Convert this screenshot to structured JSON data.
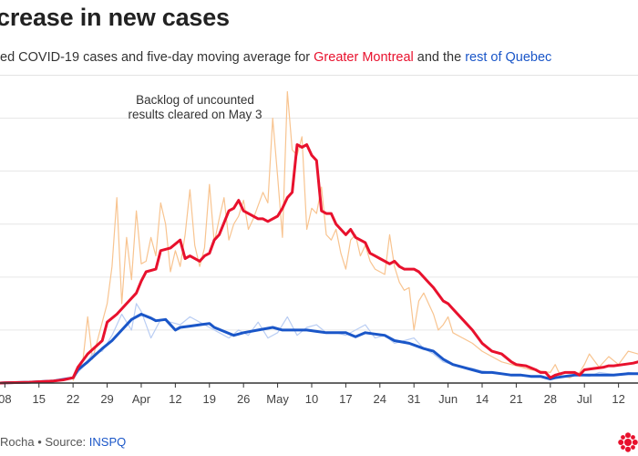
{
  "header": {
    "title": "crease in new cases",
    "subtitle_prefix": "ed COVID-19 cases and five-day moving average for ",
    "subtitle_mtl": "Greater Montreal",
    "subtitle_and": " and the ",
    "subtitle_qc": "rest of Quebec"
  },
  "footer": {
    "credit": "Rocha • Source: ",
    "source_link": "INSPQ"
  },
  "colors": {
    "montreal": "#e8112d",
    "montreal_daily": "#f8c490",
    "quebec": "#1a56c8",
    "quebec_daily": "#b9cdf3",
    "grid": "#e6e6e6",
    "axis": "#333333"
  },
  "chart_data": {
    "type": "line",
    "title": "Decrease in new cases",
    "annotation": [
      "Backlog of uncounted",
      "results cleared on May 3"
    ],
    "x_tick_labels": [
      "08",
      "15",
      "22",
      "29",
      "Apr",
      "12",
      "19",
      "26",
      "May",
      "10",
      "17",
      "24",
      "31",
      "Jun",
      "14",
      "21",
      "28",
      "Jul",
      "12"
    ],
    "x_tick_day_index": [
      0,
      7,
      14,
      21,
      28,
      35,
      42,
      49,
      56,
      63,
      70,
      77,
      84,
      91,
      98,
      105,
      112,
      119,
      126
    ],
    "x_range_days": [
      -1,
      130
    ],
    "ylim": [
      0,
      1150
    ],
    "y_gridlines": [
      0,
      200,
      400,
      600,
      800,
      1000
    ],
    "series": [
      {
        "name": "Greater Montreal five-day average",
        "x": [
          -1,
          0,
          5,
          10,
          12,
          14,
          15,
          17,
          20,
          21,
          23,
          25,
          27,
          28,
          29,
          31,
          32,
          34,
          36,
          37,
          38,
          40,
          41,
          42,
          43,
          44,
          46,
          47,
          48,
          49,
          50,
          52,
          53,
          54,
          55,
          56,
          57,
          58,
          59,
          60,
          61,
          62,
          63,
          64,
          65,
          66,
          67,
          68,
          70,
          71,
          72,
          74,
          75,
          76,
          77,
          79,
          80,
          81,
          82,
          84,
          85,
          87,
          88,
          90,
          91,
          92,
          94,
          96,
          98,
          100,
          102,
          104,
          105,
          107,
          109,
          110,
          111,
          112,
          113,
          115,
          117,
          118,
          119,
          121,
          123,
          124,
          125,
          127,
          129,
          130
        ],
        "values": [
          0,
          1,
          3,
          8,
          12,
          20,
          60,
          110,
          160,
          230,
          260,
          300,
          340,
          385,
          420,
          430,
          500,
          510,
          540,
          470,
          480,
          460,
          480,
          490,
          540,
          560,
          650,
          660,
          690,
          650,
          640,
          620,
          620,
          610,
          620,
          630,
          660,
          700,
          720,
          900,
          890,
          900,
          860,
          840,
          650,
          640,
          640,
          600,
          560,
          580,
          550,
          530,
          490,
          480,
          470,
          450,
          460,
          440,
          430,
          430,
          420,
          380,
          360,
          310,
          300,
          280,
          240,
          200,
          150,
          120,
          110,
          80,
          70,
          65,
          50,
          40,
          40,
          20,
          30,
          40,
          40,
          30,
          50,
          55,
          60,
          65,
          65,
          70,
          75,
          80
        ]
      },
      {
        "name": "Rest of Quebec five-day average",
        "x": [
          -1,
          0,
          5,
          10,
          14,
          15,
          17,
          20,
          22,
          24,
          26,
          28,
          30,
          31,
          33,
          35,
          36,
          38,
          40,
          42,
          43,
          45,
          47,
          49,
          52,
          55,
          57,
          60,
          62,
          64,
          66,
          68,
          70,
          72,
          74,
          76,
          78,
          80,
          83,
          86,
          88,
          90,
          92,
          94,
          96,
          98,
          100,
          102,
          104,
          106,
          108,
          110,
          111,
          112,
          113,
          115,
          117,
          120,
          122,
          125,
          128,
          130
        ],
        "values": [
          0,
          1,
          3,
          8,
          20,
          50,
          80,
          130,
          160,
          200,
          240,
          260,
          245,
          235,
          240,
          200,
          210,
          215,
          220,
          225,
          210,
          195,
          180,
          190,
          200,
          210,
          200,
          200,
          200,
          195,
          190,
          190,
          190,
          175,
          190,
          185,
          180,
          160,
          150,
          130,
          120,
          90,
          70,
          60,
          50,
          40,
          40,
          35,
          30,
          30,
          25,
          25,
          20,
          15,
          20,
          25,
          30,
          30,
          30,
          30,
          35,
          35
        ]
      },
      {
        "name": "Greater Montreal daily cases",
        "x": [
          14,
          16,
          17,
          18,
          20,
          21,
          22,
          23,
          24,
          25,
          26,
          27,
          28,
          29,
          30,
          31,
          32,
          33,
          34,
          35,
          36,
          37,
          38,
          39,
          40,
          41,
          42,
          43,
          44,
          45,
          46,
          47,
          48,
          49,
          50,
          51,
          52,
          53,
          54,
          55,
          56,
          57,
          58,
          59,
          60,
          61,
          62,
          63,
          64,
          65,
          66,
          67,
          68,
          69,
          70,
          71,
          72,
          73,
          74,
          75,
          76,
          77,
          78,
          79,
          80,
          81,
          82,
          83,
          84,
          85,
          86,
          87,
          88,
          89,
          90,
          91,
          92,
          94,
          96,
          98,
          100,
          102,
          104,
          106,
          108,
          110,
          112,
          113,
          114,
          116,
          118,
          119,
          120,
          122,
          124,
          126,
          128,
          130
        ],
        "values": [
          10,
          80,
          250,
          90,
          230,
          300,
          440,
          700,
          300,
          550,
          390,
          650,
          450,
          460,
          550,
          480,
          680,
          600,
          420,
          500,
          440,
          560,
          730,
          520,
          440,
          510,
          750,
          530,
          620,
          700,
          540,
          600,
          630,
          690,
          580,
          620,
          670,
          720,
          680,
          1000,
          780,
          550,
          1100,
          880,
          860,
          930,
          580,
          660,
          640,
          740,
          560,
          540,
          580,
          490,
          430,
          540,
          560,
          480,
          520,
          460,
          430,
          420,
          410,
          560,
          440,
          380,
          350,
          360,
          200,
          310,
          340,
          300,
          260,
          200,
          220,
          250,
          190,
          170,
          150,
          120,
          100,
          80,
          70,
          60,
          50,
          45,
          40,
          70,
          30,
          20,
          40,
          70,
          110,
          60,
          100,
          70,
          120,
          110
        ]
      },
      {
        "name": "Rest of Quebec daily cases",
        "x": [
          14,
          16,
          18,
          20,
          22,
          24,
          26,
          27,
          28,
          30,
          32,
          34,
          36,
          38,
          40,
          42,
          44,
          46,
          48,
          50,
          52,
          54,
          56,
          58,
          60,
          62,
          64,
          66,
          68,
          70,
          72,
          74,
          76,
          78,
          80,
          82,
          84,
          86,
          88,
          90,
          92,
          94,
          96,
          98,
          100,
          102,
          104,
          106,
          108,
          110,
          112,
          114,
          116,
          118,
          120,
          122,
          124,
          126,
          128,
          130
        ],
        "values": [
          20,
          60,
          110,
          120,
          180,
          260,
          200,
          300,
          270,
          170,
          240,
          230,
          220,
          250,
          230,
          210,
          190,
          170,
          200,
          180,
          230,
          170,
          190,
          250,
          180,
          210,
          220,
          190,
          190,
          180,
          200,
          220,
          170,
          180,
          150,
          160,
          170,
          130,
          110,
          80,
          70,
          60,
          55,
          45,
          40,
          35,
          30,
          30,
          25,
          25,
          15,
          25,
          30,
          30,
          25,
          40,
          35,
          30,
          40,
          35
        ]
      }
    ]
  }
}
